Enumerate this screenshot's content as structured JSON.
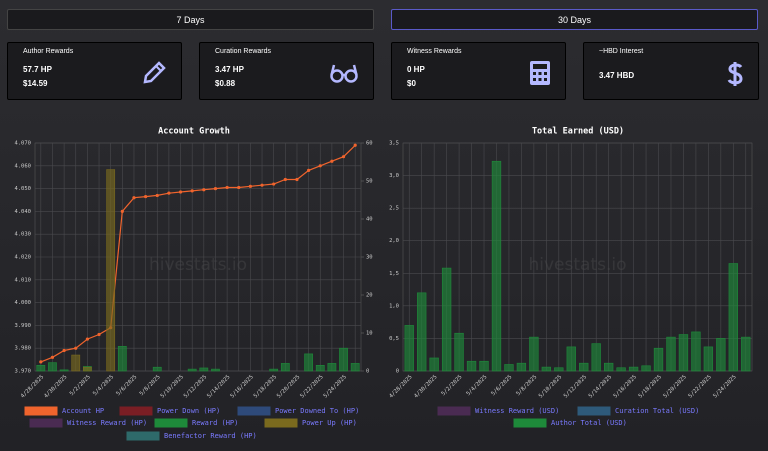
{
  "tabs": [
    {
      "label": "7 Days"
    },
    {
      "label": "30 Days"
    }
  ],
  "cards": [
    {
      "title": "Author Rewards",
      "lines": [
        "57.7 HP",
        "$14.59"
      ]
    },
    {
      "title": "Curation Rewards",
      "lines": [
        "3.47 HP",
        "$0.88"
      ]
    },
    {
      "title": "Witness Rewards",
      "lines": [
        "0 HP",
        "$0"
      ]
    },
    {
      "title": "~HBD Interest",
      "lines": [
        "3.47 HBD"
      ]
    }
  ],
  "chart_data": [
    {
      "type": "line",
      "title": "Account Growth",
      "watermark": "hivestats.io",
      "categories": [
        "4/28/2025",
        null,
        "4/30/2025",
        null,
        "5/2/2025",
        null,
        "5/4/2025",
        null,
        "5/6/2025",
        null,
        "5/8/2025",
        null,
        "5/10/2025",
        null,
        "5/12/2025",
        null,
        "5/14/2025",
        null,
        "5/16/2025",
        null,
        "5/18/2025",
        null,
        "5/20/2025",
        null,
        "5/22/2025",
        null,
        "5/24/2025",
        null
      ],
      "ylim": [
        3.97,
        4.07
      ],
      "yticks": [
        {
          "value": 3.97,
          "label": "3.970"
        },
        {
          "value": 3.98,
          "label": "3.980"
        },
        {
          "value": 3.99,
          "label": "3.990"
        },
        {
          "value": 4.0,
          "label": "4.000"
        },
        {
          "value": 4.01,
          "label": "4.010"
        },
        {
          "value": 4.02,
          "label": "4.020"
        },
        {
          "value": 4.03,
          "label": "4.030"
        },
        {
          "value": 4.04,
          "label": "4.040"
        },
        {
          "value": 4.05,
          "label": "4.050"
        },
        {
          "value": 4.06,
          "label": "4.060"
        },
        {
          "value": 4.07,
          "label": "4.070"
        }
      ],
      "y2lim": [
        0,
        60
      ],
      "y2ticks": [
        0,
        10,
        20,
        30,
        40,
        50,
        60
      ],
      "grid": true,
      "series": [
        {
          "name": "Account HP",
          "color": "#f0642d",
          "type": "line",
          "values": [
            3.974,
            3.976,
            3.979,
            3.98,
            3.984,
            3.986,
            3.989,
            4.04,
            4.046,
            4.0465,
            4.047,
            4.048,
            4.0485,
            4.049,
            4.0495,
            4.05,
            4.0505,
            4.0505,
            4.051,
            4.0515,
            4.052,
            4.054,
            4.054,
            4.058,
            4.06,
            4.062,
            4.064,
            4.069
          ]
        },
        {
          "name": "Power Down (HP)",
          "color": "#7a1e24",
          "type": "bar",
          "axis": "y2"
        },
        {
          "name": "Power Downed To (HP)",
          "color": "#2e4a7a",
          "type": "bar",
          "axis": "y2"
        },
        {
          "name": "Witness Reward (HP)",
          "color": "#4a2b52",
          "type": "bar",
          "axis": "y2"
        },
        {
          "name": "Reward (HP)",
          "color": "#1e8a3a",
          "type": "bar",
          "axis": "y2",
          "values": [
            1.5,
            2.2,
            0.3,
            0,
            1.2,
            0,
            0,
            6.5,
            0,
            0,
            1.0,
            0,
            0,
            0.5,
            0.8,
            0.5,
            0,
            0,
            0,
            0,
            0.5,
            2,
            0,
            4.5,
            1.5,
            2,
            6,
            2
          ]
        },
        {
          "name": "Power Up (HP)",
          "color": "#7a6a1e",
          "type": "bar",
          "axis": "y2",
          "values": [
            0,
            0,
            0,
            4.2,
            1,
            0,
            53,
            0,
            0,
            0,
            0,
            0,
            0,
            0,
            0,
            0,
            0,
            0,
            0,
            0,
            0,
            0,
            0,
            0,
            0,
            0,
            0,
            0
          ]
        },
        {
          "name": "Benefactor Reward (HP)",
          "color": "#2e6a6a",
          "type": "bar",
          "axis": "y2"
        }
      ]
    },
    {
      "type": "bar",
      "title": "Total Earned (USD)",
      "watermark": "hivestats.io",
      "categories": [
        "4/28/2025",
        null,
        "4/30/2025",
        null,
        "5/2/2025",
        null,
        "5/4/2025",
        null,
        "5/6/2025",
        null,
        "5/8/2025",
        null,
        "5/10/2025",
        null,
        "5/12/2025",
        null,
        "5/14/2025",
        null,
        "5/16/2025",
        null,
        "5/18/2025",
        null,
        "5/20/2025",
        null,
        "5/22/2025",
        null,
        "5/24/2025",
        null
      ],
      "ylim": [
        0,
        3.5
      ],
      "yticks": [
        0,
        {
          "value": 0.5,
          "label": "0,5"
        },
        {
          "value": 1.0,
          "label": "1,0"
        },
        {
          "value": 1.5,
          "label": "1,5"
        },
        {
          "value": 2.0,
          "label": "2,0"
        },
        {
          "value": 2.5,
          "label": "2,5"
        },
        {
          "value": 3.0,
          "label": "3,0"
        },
        {
          "value": 3.5,
          "label": "3,5"
        }
      ],
      "grid": true,
      "series": [
        {
          "name": "Witness Reward (USD)",
          "color": "#4a2b52"
        },
        {
          "name": "Curation Total (USD)",
          "color": "#2e5a7a"
        },
        {
          "name": "Author Total (USD)",
          "color": "#1e8a3a",
          "values": [
            0.7,
            1.2,
            0.2,
            1.58,
            0.58,
            0.15,
            0.15,
            3.22,
            0.1,
            0.12,
            0.52,
            0.06,
            0.05,
            0.37,
            0.12,
            0.42,
            0.12,
            0.05,
            0.06,
            0.08,
            0.35,
            0.52,
            0.56,
            0.6,
            0.37,
            0.5,
            1.65,
            0.52
          ]
        }
      ]
    }
  ]
}
